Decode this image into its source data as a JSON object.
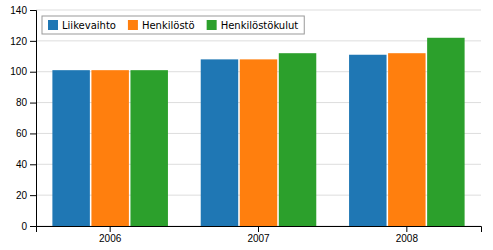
{
  "chart_data": {
    "type": "bar",
    "categories": [
      "2006",
      "2007",
      "2008"
    ],
    "series": [
      {
        "name": "Liikevaihto",
        "values": [
          101,
          108,
          111
        ]
      },
      {
        "name": "Henkilöstö",
        "values": [
          101,
          108,
          112
        ]
      },
      {
        "name": "Henkilöstökulut",
        "values": [
          101,
          112,
          122
        ]
      }
    ],
    "ylim": [
      0,
      140
    ],
    "yticks": [
      0,
      20,
      40,
      60,
      80,
      100,
      120,
      140
    ],
    "grid": true,
    "legend": "upper left"
  }
}
